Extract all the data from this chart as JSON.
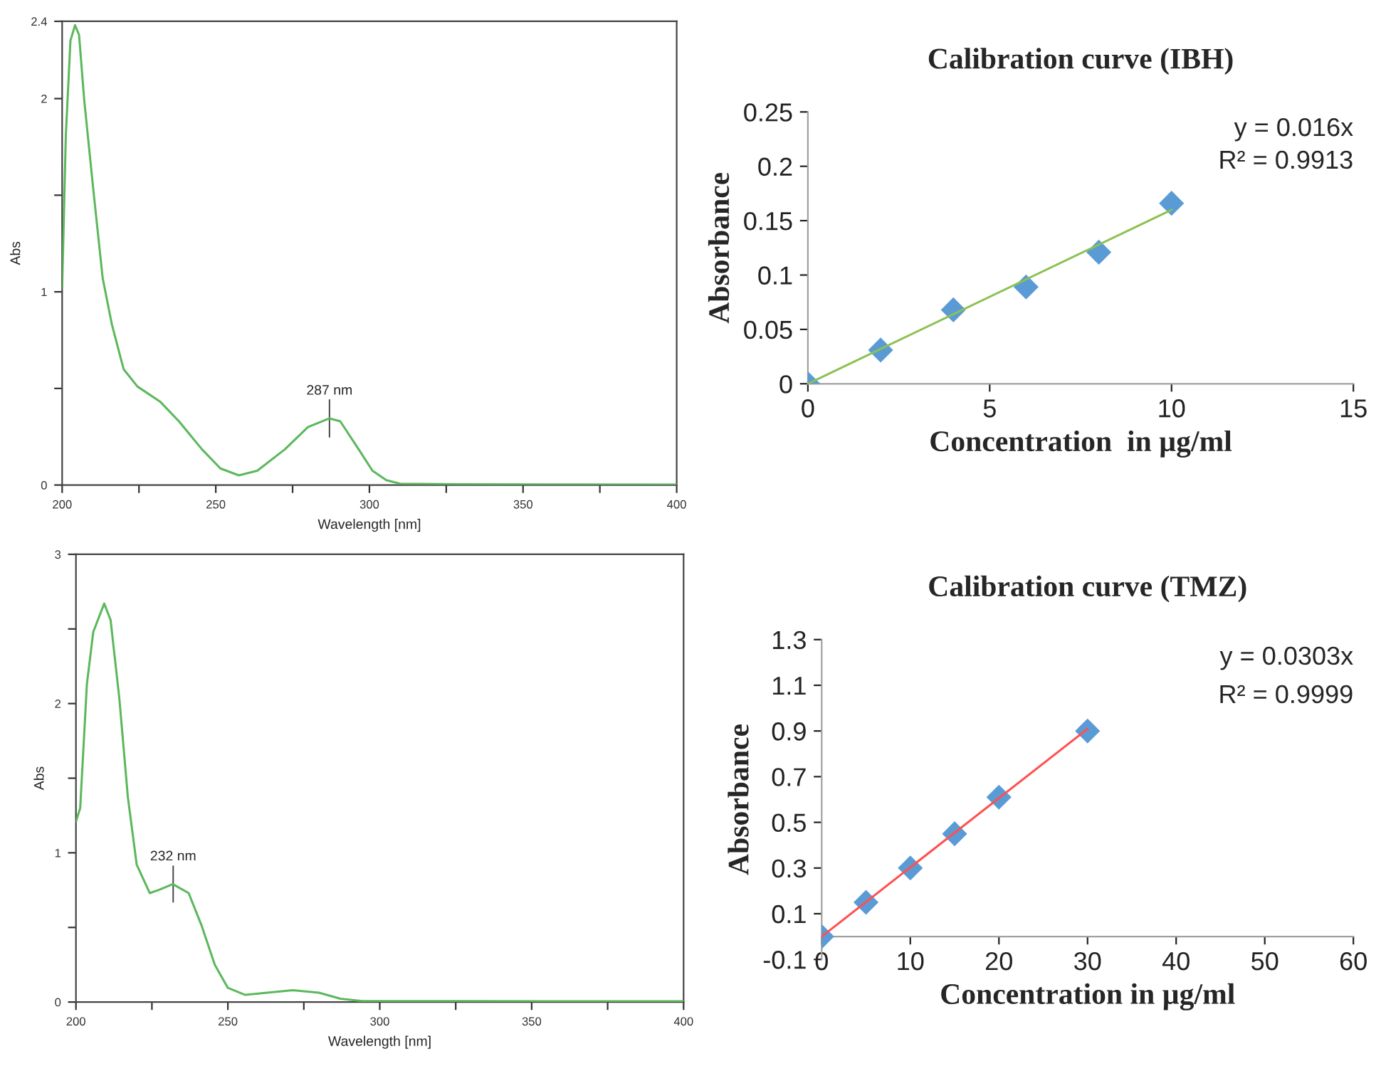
{
  "chart_data": [
    {
      "type": "line",
      "xlabel": "Wavelength [nm]",
      "ylabel": "Abs",
      "xlim": [
        200,
        400
      ],
      "ylim": [
        0,
        2.4
      ],
      "xticks": [
        200,
        {
          "value": 225,
          "label": null
        },
        250,
        {
          "value": 275,
          "label": null
        },
        300,
        {
          "value": 325,
          "label": null
        },
        350,
        {
          "value": 375,
          "label": null
        },
        400
      ],
      "yticks": [
        0,
        {
          "value": 0.5,
          "label": null
        },
        1,
        {
          "value": 1.5,
          "label": null
        },
        2,
        2.4
      ],
      "series": [
        {
          "color": "#5cb85c",
          "x": [
            200,
            201.2,
            202.7,
            204.2,
            205.5,
            207.2,
            210.2,
            213.2,
            216.2,
            220,
            224.5,
            232,
            238,
            245.5,
            251.5,
            257.5,
            263.5,
            272.5,
            280,
            287,
            290.5,
            296.5,
            301,
            305.5,
            310,
            330,
            360,
            400
          ],
          "values": [
            1.02,
            1.81,
            2.3,
            2.38,
            2.33,
            1.99,
            1.52,
            1.07,
            0.83,
            0.6,
            0.51,
            0.43,
            0.33,
            0.185,
            0.086,
            0.05,
            0.074,
            0.185,
            0.3,
            0.345,
            0.33,
            0.185,
            0.074,
            0.025,
            0.007,
            0.004,
            0.003,
            0.002
          ]
        }
      ],
      "annotations": [
        {
          "text": "287 nm",
          "x": 287,
          "y": 0.345
        }
      ],
      "grid": false,
      "legend": false
    },
    {
      "type": "scatter",
      "title": "Calibration curve (IBH)",
      "xlabel": "Concentration  in µg/ml",
      "ylabel": "Absorbance",
      "xlim": [
        0,
        15
      ],
      "ylim": [
        0,
        0.25
      ],
      "xticks": [
        0,
        5,
        10,
        15
      ],
      "yticks": [
        0,
        0.05,
        0.1,
        0.15,
        0.2,
        0.25
      ],
      "series": [
        {
          "type": "line",
          "color": "#8cc152",
          "x": [
            0,
            10
          ],
          "values": [
            0,
            0.16
          ],
          "marker": "none"
        },
        {
          "type": "scatter",
          "color": "#5b9bd5",
          "x": [
            0,
            2,
            4,
            6,
            8,
            10
          ],
          "values": [
            0,
            0.031,
            0.068,
            0.089,
            0.121,
            0.166
          ],
          "marker": "diamond"
        }
      ],
      "annotations": [
        "y = 0.016x",
        "R² = 0.9913"
      ],
      "grid": false,
      "legend": false
    },
    {
      "type": "line",
      "xlabel": "Wavelength [nm]",
      "ylabel": "Abs",
      "xlim": [
        200,
        400
      ],
      "ylim": [
        0,
        3
      ],
      "xticks": [
        200,
        {
          "value": 225,
          "label": null
        },
        250,
        {
          "value": 275,
          "label": null
        },
        300,
        {
          "value": 325,
          "label": null
        },
        350,
        {
          "value": 375,
          "label": null
        },
        400
      ],
      "yticks": [
        0,
        {
          "value": 0.5,
          "label": null
        },
        1,
        {
          "value": 1.5,
          "label": null
        },
        2,
        {
          "value": 2.5,
          "label": null
        },
        3
      ],
      "series": [
        {
          "color": "#5cb85c",
          "x": [
            200,
            201.4,
            203.6,
            205.7,
            209.3,
            211.4,
            214.3,
            217.1,
            220,
            224.3,
            227.1,
            231.9,
            237.1,
            241.4,
            245.7,
            250,
            255.7,
            262.9,
            271.4,
            280,
            287.1,
            294.3,
            330,
            400
          ],
          "values": [
            1.21,
            1.3,
            2.13,
            2.48,
            2.67,
            2.56,
            2.03,
            1.37,
            0.92,
            0.73,
            0.75,
            0.79,
            0.73,
            0.51,
            0.25,
            0.095,
            0.048,
            0.063,
            0.079,
            0.063,
            0.022,
            0.006,
            0.006,
            0.005
          ]
        }
      ],
      "annotations": [
        {
          "text": "232 nm",
          "x": 232,
          "y": 0.79
        }
      ],
      "grid": false,
      "legend": false
    },
    {
      "type": "scatter",
      "title": "Calibration curve (TMZ)",
      "xlabel": "Concentration in µg/ml",
      "ylabel": "Absorbance",
      "xlim": [
        0,
        60
      ],
      "ylim": [
        -0.1,
        1.3
      ],
      "xticks": [
        0,
        10,
        20,
        30,
        40,
        50,
        60
      ],
      "yticks": [
        {
          "value": -0.1,
          "label": "-0.1"
        },
        0.1,
        0.3,
        0.5,
        0.7,
        0.9,
        1.1,
        1.3
      ],
      "series": [
        {
          "type": "line",
          "color": "#ff5050",
          "x": [
            0,
            30
          ],
          "values": [
            0,
            0.909
          ],
          "marker": "none"
        },
        {
          "type": "scatter",
          "color": "#5b9bd5",
          "x": [
            0,
            5,
            10,
            15,
            20,
            30
          ],
          "values": [
            0,
            0.15,
            0.3,
            0.45,
            0.61,
            0.9
          ],
          "marker": "diamond"
        }
      ],
      "annotations": [
        "y = 0.0303x",
        "R² = 0.9999"
      ],
      "grid": false,
      "legend": false
    }
  ]
}
